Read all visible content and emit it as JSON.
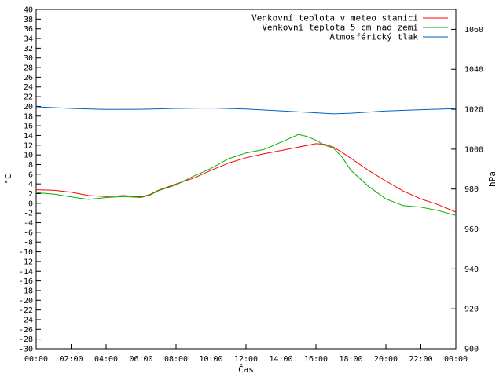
{
  "chart_data": {
    "type": "line",
    "xlabel": "Čas",
    "ylabel_left": "°C",
    "ylabel_right": "hPa",
    "x_ticks": [
      "00:00",
      "02:00",
      "04:00",
      "06:00",
      "08:00",
      "10:00",
      "12:00",
      "14:00",
      "16:00",
      "18:00",
      "20:00",
      "22:00",
      "00:00"
    ],
    "x_range_hours": [
      0,
      24
    ],
    "ylim_left": [
      -30,
      40
    ],
    "ylim_right": [
      900,
      1070
    ],
    "y_ticks_left_step": 2,
    "y_ticks_right": [
      900,
      920,
      940,
      960,
      980,
      1000,
      1020,
      1040,
      1060
    ],
    "grid": false,
    "legend_position": "top-right",
    "series": [
      {
        "name": "Venkovní teplota v meteo stanici",
        "axis": "left",
        "color": "#ff0000",
        "points": [
          [
            0,
            2.8
          ],
          [
            1,
            2.7
          ],
          [
            2,
            2.3
          ],
          [
            3,
            1.6
          ],
          [
            4,
            1.4
          ],
          [
            5,
            1.6
          ],
          [
            6,
            1.3
          ],
          [
            6.5,
            1.8
          ],
          [
            7,
            2.7
          ],
          [
            8,
            4.0
          ],
          [
            9,
            5.2
          ],
          [
            10,
            6.8
          ],
          [
            11,
            8.3
          ],
          [
            12,
            9.4
          ],
          [
            13,
            10.2
          ],
          [
            14,
            10.9
          ],
          [
            15,
            11.6
          ],
          [
            16,
            12.3
          ],
          [
            16.5,
            12.2
          ],
          [
            17,
            11.6
          ],
          [
            17.5,
            10.5
          ],
          [
            18,
            9.3
          ],
          [
            19,
            6.8
          ],
          [
            20,
            4.6
          ],
          [
            21,
            2.5
          ],
          [
            22,
            0.9
          ],
          [
            23,
            -0.3
          ],
          [
            24,
            -1.8
          ]
        ]
      },
      {
        "name": "Venkovní teplota 5 cm nad zemí",
        "axis": "left",
        "color": "#00b000",
        "points": [
          [
            0,
            2.2
          ],
          [
            1,
            1.9
          ],
          [
            2,
            1.3
          ],
          [
            3,
            0.8
          ],
          [
            4,
            1.2
          ],
          [
            5,
            1.4
          ],
          [
            6,
            1.2
          ],
          [
            6.5,
            1.7
          ],
          [
            7,
            2.6
          ],
          [
            8,
            3.8
          ],
          [
            9,
            5.6
          ],
          [
            10,
            7.2
          ],
          [
            11,
            9.2
          ],
          [
            12,
            10.4
          ],
          [
            13,
            11.1
          ],
          [
            14,
            12.6
          ],
          [
            15,
            14.2
          ],
          [
            15.5,
            13.8
          ],
          [
            16,
            13.0
          ],
          [
            16.5,
            12.0
          ],
          [
            17,
            11.4
          ],
          [
            17.5,
            9.5
          ],
          [
            18,
            6.8
          ],
          [
            19,
            3.5
          ],
          [
            20,
            0.9
          ],
          [
            21,
            -0.5
          ],
          [
            22,
            -0.8
          ],
          [
            23,
            -1.5
          ],
          [
            24,
            -2.5
          ]
        ]
      },
      {
        "name": "Atmosférický tlak",
        "axis": "right",
        "color": "#0060c0",
        "points": [
          [
            0,
            1021.2
          ],
          [
            2,
            1020.4
          ],
          [
            4,
            1019.9
          ],
          [
            6,
            1020.0
          ],
          [
            8,
            1020.4
          ],
          [
            10,
            1020.6
          ],
          [
            12,
            1020.1
          ],
          [
            14,
            1019.2
          ],
          [
            16,
            1018.2
          ],
          [
            17,
            1017.7
          ],
          [
            18,
            1018.0
          ],
          [
            20,
            1019.1
          ],
          [
            22,
            1019.8
          ],
          [
            24,
            1020.3
          ]
        ]
      }
    ]
  }
}
